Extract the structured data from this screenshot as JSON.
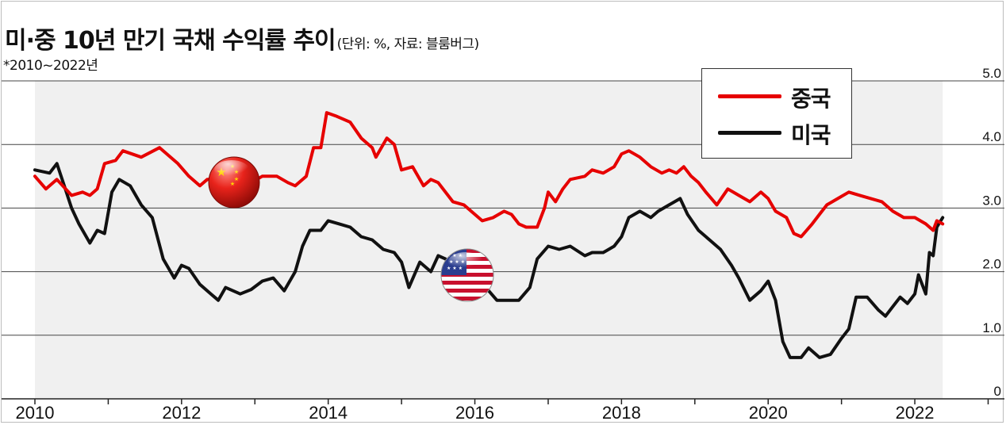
{
  "header": {
    "title": "미·중 10년 만기 국채 수익률 추이",
    "unit_note": "(단위: %, 자료: 블룸버그)",
    "period_note": "*2010~2022년"
  },
  "legend": {
    "items": [
      {
        "label": "중국",
        "color": "#e60000"
      },
      {
        "label": "미국",
        "color": "#111111"
      }
    ]
  },
  "icons": {
    "china_flag": "china-flag-icon",
    "us_flag": "us-flag-icon"
  },
  "chart_data": {
    "type": "line",
    "xlim": [
      2010,
      2022.8
    ],
    "ylim": [
      0,
      5.0
    ],
    "x_ticks": [
      "2010",
      "2012",
      "2014",
      "2016",
      "2018",
      "2020",
      "2022"
    ],
    "y_ticks": [
      "0",
      "1.0",
      "2.0",
      "3.0",
      "4.0",
      "5.0"
    ],
    "grid": "horizontal",
    "legend_position": "top-right",
    "series": [
      {
        "name": "중국",
        "color": "#e60000",
        "points": [
          [
            2010.0,
            3.5
          ],
          [
            2010.15,
            3.3
          ],
          [
            2010.3,
            3.45
          ],
          [
            2010.5,
            3.2
          ],
          [
            2010.65,
            3.25
          ],
          [
            2010.75,
            3.2
          ],
          [
            2010.85,
            3.3
          ],
          [
            2010.95,
            3.7
          ],
          [
            2011.1,
            3.75
          ],
          [
            2011.2,
            3.9
          ],
          [
            2011.45,
            3.8
          ],
          [
            2011.7,
            3.95
          ],
          [
            2011.95,
            3.7
          ],
          [
            2012.1,
            3.5
          ],
          [
            2012.25,
            3.35
          ],
          [
            2012.35,
            3.45
          ],
          [
            2012.55,
            3.45
          ],
          [
            2012.75,
            3.3
          ],
          [
            2012.95,
            3.4
          ],
          [
            2013.1,
            3.5
          ],
          [
            2013.3,
            3.5
          ],
          [
            2013.45,
            3.4
          ],
          [
            2013.55,
            3.35
          ],
          [
            2013.7,
            3.5
          ],
          [
            2013.8,
            3.95
          ],
          [
            2013.9,
            3.95
          ],
          [
            2013.98,
            4.5
          ],
          [
            2014.1,
            4.45
          ],
          [
            2014.3,
            4.35
          ],
          [
            2014.45,
            4.1
          ],
          [
            2014.6,
            3.95
          ],
          [
            2014.65,
            3.8
          ],
          [
            2014.8,
            4.1
          ],
          [
            2014.9,
            4.0
          ],
          [
            2015.0,
            3.6
          ],
          [
            2015.15,
            3.65
          ],
          [
            2015.3,
            3.35
          ],
          [
            2015.4,
            3.45
          ],
          [
            2015.5,
            3.4
          ],
          [
            2015.7,
            3.1
          ],
          [
            2015.85,
            3.05
          ],
          [
            2015.95,
            2.95
          ],
          [
            2016.1,
            2.8
          ],
          [
            2016.25,
            2.85
          ],
          [
            2016.4,
            2.95
          ],
          [
            2016.5,
            2.9
          ],
          [
            2016.6,
            2.75
          ],
          [
            2016.7,
            2.7
          ],
          [
            2016.85,
            2.7
          ],
          [
            2016.95,
            3.0
          ],
          [
            2017.0,
            3.25
          ],
          [
            2017.1,
            3.1
          ],
          [
            2017.2,
            3.3
          ],
          [
            2017.3,
            3.45
          ],
          [
            2017.5,
            3.5
          ],
          [
            2017.6,
            3.6
          ],
          [
            2017.75,
            3.55
          ],
          [
            2017.9,
            3.65
          ],
          [
            2018.0,
            3.85
          ],
          [
            2018.1,
            3.9
          ],
          [
            2018.25,
            3.8
          ],
          [
            2018.4,
            3.65
          ],
          [
            2018.55,
            3.55
          ],
          [
            2018.65,
            3.6
          ],
          [
            2018.75,
            3.55
          ],
          [
            2018.85,
            3.65
          ],
          [
            2018.95,
            3.5
          ],
          [
            2019.05,
            3.4
          ],
          [
            2019.15,
            3.25
          ],
          [
            2019.3,
            3.05
          ],
          [
            2019.45,
            3.3
          ],
          [
            2019.6,
            3.2
          ],
          [
            2019.75,
            3.1
          ],
          [
            2019.9,
            3.25
          ],
          [
            2020.0,
            3.15
          ],
          [
            2020.1,
            2.95
          ],
          [
            2020.25,
            2.85
          ],
          [
            2020.35,
            2.6
          ],
          [
            2020.45,
            2.55
          ],
          [
            2020.6,
            2.75
          ],
          [
            2020.7,
            2.9
          ],
          [
            2020.8,
            3.05
          ],
          [
            2020.95,
            3.15
          ],
          [
            2021.1,
            3.25
          ],
          [
            2021.25,
            3.2
          ],
          [
            2021.4,
            3.15
          ],
          [
            2021.55,
            3.1
          ],
          [
            2021.7,
            2.95
          ],
          [
            2021.85,
            2.85
          ],
          [
            2022.0,
            2.85
          ],
          [
            2022.15,
            2.75
          ],
          [
            2022.25,
            2.65
          ],
          [
            2022.3,
            2.8
          ],
          [
            2022.38,
            2.75
          ]
        ]
      },
      {
        "name": "미국",
        "color": "#111111",
        "points": [
          [
            2010.0,
            3.6
          ],
          [
            2010.2,
            3.55
          ],
          [
            2010.3,
            3.7
          ],
          [
            2010.4,
            3.35
          ],
          [
            2010.5,
            3.0
          ],
          [
            2010.6,
            2.75
          ],
          [
            2010.75,
            2.45
          ],
          [
            2010.85,
            2.65
          ],
          [
            2010.95,
            2.6
          ],
          [
            2011.05,
            3.25
          ],
          [
            2011.15,
            3.45
          ],
          [
            2011.3,
            3.35
          ],
          [
            2011.45,
            3.05
          ],
          [
            2011.6,
            2.85
          ],
          [
            2011.75,
            2.2
          ],
          [
            2011.9,
            1.9
          ],
          [
            2012.0,
            2.1
          ],
          [
            2012.1,
            2.05
          ],
          [
            2012.25,
            1.8
          ],
          [
            2012.4,
            1.65
          ],
          [
            2012.5,
            1.55
          ],
          [
            2012.6,
            1.75
          ],
          [
            2012.8,
            1.65
          ],
          [
            2012.95,
            1.72
          ],
          [
            2013.1,
            1.85
          ],
          [
            2013.25,
            1.9
          ],
          [
            2013.4,
            1.7
          ],
          [
            2013.55,
            2.0
          ],
          [
            2013.65,
            2.4
          ],
          [
            2013.75,
            2.65
          ],
          [
            2013.9,
            2.65
          ],
          [
            2014.0,
            2.8
          ],
          [
            2014.15,
            2.75
          ],
          [
            2014.3,
            2.7
          ],
          [
            2014.45,
            2.55
          ],
          [
            2014.6,
            2.5
          ],
          [
            2014.75,
            2.35
          ],
          [
            2014.9,
            2.3
          ],
          [
            2015.0,
            2.15
          ],
          [
            2015.1,
            1.75
          ],
          [
            2015.25,
            2.15
          ],
          [
            2015.4,
            2.0
          ],
          [
            2015.5,
            2.25
          ],
          [
            2015.6,
            2.2
          ],
          [
            2015.75,
            2.0
          ],
          [
            2015.9,
            2.25
          ],
          [
            2016.0,
            2.05
          ],
          [
            2016.15,
            1.75
          ],
          [
            2016.3,
            1.55
          ],
          [
            2016.45,
            1.55
          ],
          [
            2016.6,
            1.55
          ],
          [
            2016.75,
            1.75
          ],
          [
            2016.85,
            2.2
          ],
          [
            2017.0,
            2.4
          ],
          [
            2017.15,
            2.35
          ],
          [
            2017.3,
            2.4
          ],
          [
            2017.5,
            2.25
          ],
          [
            2017.6,
            2.3
          ],
          [
            2017.75,
            2.3
          ],
          [
            2017.9,
            2.4
          ],
          [
            2018.0,
            2.55
          ],
          [
            2018.1,
            2.85
          ],
          [
            2018.25,
            2.95
          ],
          [
            2018.4,
            2.85
          ],
          [
            2018.5,
            2.95
          ],
          [
            2018.65,
            3.05
          ],
          [
            2018.8,
            3.15
          ],
          [
            2018.9,
            2.9
          ],
          [
            2019.05,
            2.65
          ],
          [
            2019.2,
            2.5
          ],
          [
            2019.35,
            2.35
          ],
          [
            2019.5,
            2.1
          ],
          [
            2019.6,
            1.9
          ],
          [
            2019.75,
            1.55
          ],
          [
            2019.9,
            1.7
          ],
          [
            2020.0,
            1.85
          ],
          [
            2020.1,
            1.55
          ],
          [
            2020.2,
            0.9
          ],
          [
            2020.3,
            0.65
          ],
          [
            2020.45,
            0.65
          ],
          [
            2020.55,
            0.8
          ],
          [
            2020.7,
            0.65
          ],
          [
            2020.85,
            0.7
          ],
          [
            2021.0,
            0.95
          ],
          [
            2021.1,
            1.1
          ],
          [
            2021.2,
            1.6
          ],
          [
            2021.35,
            1.6
          ],
          [
            2021.5,
            1.4
          ],
          [
            2021.6,
            1.3
          ],
          [
            2021.7,
            1.45
          ],
          [
            2021.8,
            1.6
          ],
          [
            2021.9,
            1.5
          ],
          [
            2022.0,
            1.65
          ],
          [
            2022.05,
            1.95
          ],
          [
            2022.15,
            1.65
          ],
          [
            2022.2,
            2.3
          ],
          [
            2022.25,
            2.25
          ],
          [
            2022.3,
            2.7
          ],
          [
            2022.38,
            2.85
          ]
        ]
      }
    ]
  }
}
